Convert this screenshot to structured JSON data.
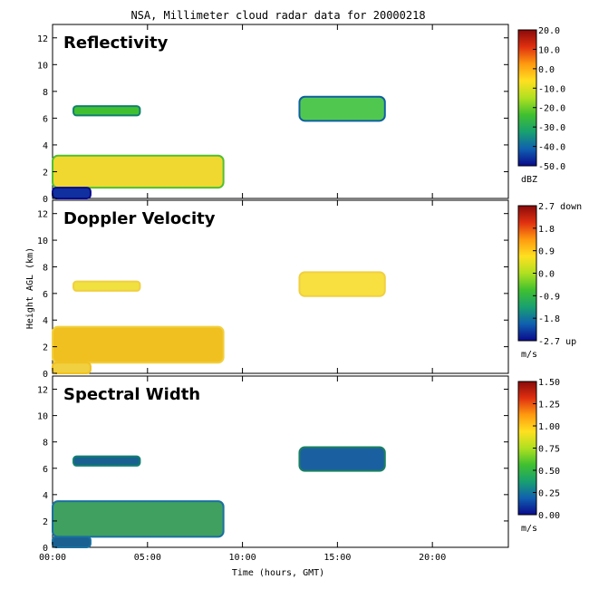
{
  "chart_data": {
    "type": "heatmap",
    "title": "NSA, Millimeter cloud radar data for 20000218",
    "xlabel": "Time (hours, GMT)",
    "ylabel": "Height AGL (km)",
    "xlim": [
      0,
      24
    ],
    "ylim": [
      0,
      13
    ],
    "x_ticks": [
      "00:00",
      "05:00",
      "10:00",
      "15:00",
      "20:00"
    ],
    "x_tick_values": [
      0,
      5,
      10,
      15,
      20
    ],
    "y_ticks": [
      0,
      2,
      4,
      6,
      8,
      10,
      12
    ],
    "panels": [
      {
        "title": "Reflectivity",
        "colorbar": {
          "labels": [
            "20.0",
            "10.0",
            "0.0",
            "-10.0",
            "-20.0",
            "-30.0",
            "-40.0",
            "-50.0"
          ],
          "unit": "dBZ",
          "colors": [
            "#0a0a8c",
            "#1060b0",
            "#18a070",
            "#40c030",
            "#b0e020",
            "#ffe020",
            "#ff9a10",
            "#e03010",
            "#8a0a0a"
          ]
        },
        "regions": [
          {
            "x0": 0.0,
            "x1": 9.0,
            "y0": 0.8,
            "y1": 3.2,
            "color": "#f0d830",
            "edge": "#50c030"
          },
          {
            "x0": 1.1,
            "x1": 4.6,
            "y0": 6.2,
            "y1": 6.9,
            "color": "#40c030",
            "edge": "#108070"
          },
          {
            "x0": 13.0,
            "x1": 17.5,
            "y0": 5.8,
            "y1": 7.6,
            "color": "#50c850",
            "edge": "#1060a0"
          },
          {
            "x0": 0.0,
            "x1": 2.0,
            "y0": 0.0,
            "y1": 0.8,
            "color": "#1030a0",
            "edge": "#0a0a8c"
          }
        ]
      },
      {
        "title": "Doppler Velocity",
        "colorbar": {
          "labels": [
            "2.7 down",
            "1.8",
            "0.9",
            "0.0",
            "-0.9",
            "-1.8",
            "-2.7 up"
          ],
          "unit": "m/s",
          "colors": [
            "#0a0a8c",
            "#1060b0",
            "#18a070",
            "#40c030",
            "#b0e020",
            "#ffe020",
            "#ff9a10",
            "#e03010",
            "#8a0a0a"
          ]
        },
        "regions": [
          {
            "x0": 0.0,
            "x1": 9.0,
            "y0": 0.8,
            "y1": 3.5,
            "color": "#f0c020",
            "edge": "#f0d040"
          },
          {
            "x0": 1.1,
            "x1": 4.6,
            "y0": 6.2,
            "y1": 6.9,
            "color": "#f0e040",
            "edge": "#f0d040"
          },
          {
            "x0": 13.0,
            "x1": 17.5,
            "y0": 5.8,
            "y1": 7.6,
            "color": "#f8e040",
            "edge": "#f0d040"
          },
          {
            "x0": 0.0,
            "x1": 2.0,
            "y0": 0.0,
            "y1": 0.8,
            "color": "#f0d040",
            "edge": "#f0c020"
          }
        ]
      },
      {
        "title": "Spectral Width",
        "colorbar": {
          "labels": [
            "1.50",
            "1.25",
            "1.00",
            "0.75",
            "0.50",
            "0.25",
            "0.00"
          ],
          "unit": "m/s",
          "colors": [
            "#0a0a8c",
            "#1060b0",
            "#18a070",
            "#40c030",
            "#b0e020",
            "#ffe020",
            "#ff9a10",
            "#e03010",
            "#8a0a0a"
          ]
        },
        "regions": [
          {
            "x0": 0.0,
            "x1": 9.0,
            "y0": 0.8,
            "y1": 3.5,
            "color": "#40a060",
            "edge": "#1a70a0"
          },
          {
            "x0": 1.1,
            "x1": 4.6,
            "y0": 6.2,
            "y1": 6.9,
            "color": "#1a6090",
            "edge": "#108070"
          },
          {
            "x0": 13.0,
            "x1": 17.5,
            "y0": 5.8,
            "y1": 7.6,
            "color": "#1a60a0",
            "edge": "#1a8060"
          },
          {
            "x0": 0.0,
            "x1": 2.0,
            "y0": 0.0,
            "y1": 0.8,
            "color": "#1a6090",
            "edge": "#1a70a0"
          }
        ]
      }
    ]
  }
}
